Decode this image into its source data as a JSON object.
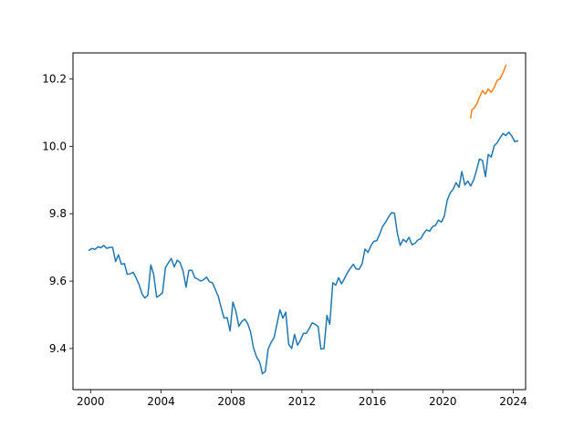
{
  "chart_data": {
    "type": "line",
    "title": "",
    "xlabel": "",
    "ylabel": "",
    "xlim": [
      1999.0,
      2024.7
    ],
    "ylim": [
      9.278,
      10.277
    ],
    "xticks": [
      2000,
      2004,
      2008,
      2012,
      2016,
      2020,
      2024
    ],
    "xtick_labels": [
      "2000",
      "2004",
      "2008",
      "2012",
      "2016",
      "2020",
      "2024"
    ],
    "yticks": [
      9.4,
      9.6,
      9.8,
      10.0,
      10.2
    ],
    "ytick_labels": [
      "9.4",
      "9.6",
      "9.8",
      "10.0",
      "10.2"
    ],
    "grid": false,
    "legend": "none",
    "series": [
      {
        "color": "#1f77b4",
        "points": [
          [
            1999.92,
            9.692
          ],
          [
            2000.08,
            9.697
          ],
          [
            2000.25,
            9.694
          ],
          [
            2000.42,
            9.702
          ],
          [
            2000.58,
            9.699
          ],
          [
            2000.75,
            9.706
          ],
          [
            2000.92,
            9.697
          ],
          [
            2001.08,
            9.7
          ],
          [
            2001.25,
            9.7
          ],
          [
            2001.42,
            9.658
          ],
          [
            2001.58,
            9.678
          ],
          [
            2001.75,
            9.65
          ],
          [
            2001.92,
            9.652
          ],
          [
            2002.08,
            9.62
          ],
          [
            2002.25,
            9.622
          ],
          [
            2002.42,
            9.626
          ],
          [
            2002.58,
            9.61
          ],
          [
            2002.75,
            9.59
          ],
          [
            2002.92,
            9.562
          ],
          [
            2003.08,
            9.55
          ],
          [
            2003.25,
            9.558
          ],
          [
            2003.42,
            9.648
          ],
          [
            2003.58,
            9.62
          ],
          [
            2003.75,
            9.552
          ],
          [
            2003.92,
            9.558
          ],
          [
            2004.08,
            9.565
          ],
          [
            2004.25,
            9.64
          ],
          [
            2004.42,
            9.655
          ],
          [
            2004.58,
            9.667
          ],
          [
            2004.75,
            9.642
          ],
          [
            2004.92,
            9.662
          ],
          [
            2005.08,
            9.655
          ],
          [
            2005.25,
            9.63
          ],
          [
            2005.42,
            9.582
          ],
          [
            2005.58,
            9.632
          ],
          [
            2005.75,
            9.632
          ],
          [
            2005.92,
            9.61
          ],
          [
            2006.08,
            9.606
          ],
          [
            2006.25,
            9.6
          ],
          [
            2006.42,
            9.604
          ],
          [
            2006.58,
            9.612
          ],
          [
            2006.75,
            9.598
          ],
          [
            2006.92,
            9.595
          ],
          [
            2007.08,
            9.575
          ],
          [
            2007.25,
            9.555
          ],
          [
            2007.42,
            9.52
          ],
          [
            2007.58,
            9.49
          ],
          [
            2007.75,
            9.492
          ],
          [
            2007.92,
            9.452
          ],
          [
            2008.08,
            9.538
          ],
          [
            2008.25,
            9.51
          ],
          [
            2008.42,
            9.466
          ],
          [
            2008.58,
            9.48
          ],
          [
            2008.75,
            9.487
          ],
          [
            2008.92,
            9.474
          ],
          [
            2009.08,
            9.45
          ],
          [
            2009.25,
            9.402
          ],
          [
            2009.42,
            9.375
          ],
          [
            2009.58,
            9.362
          ],
          [
            2009.67,
            9.346
          ],
          [
            2009.75,
            9.325
          ],
          [
            2009.92,
            9.332
          ],
          [
            2010.08,
            9.398
          ],
          [
            2010.25,
            9.418
          ],
          [
            2010.42,
            9.433
          ],
          [
            2010.58,
            9.472
          ],
          [
            2010.75,
            9.515
          ],
          [
            2010.92,
            9.49
          ],
          [
            2011.08,
            9.508
          ],
          [
            2011.25,
            9.412
          ],
          [
            2011.42,
            9.4
          ],
          [
            2011.58,
            9.442
          ],
          [
            2011.75,
            9.41
          ],
          [
            2011.92,
            9.425
          ],
          [
            2012.08,
            9.445
          ],
          [
            2012.25,
            9.445
          ],
          [
            2012.42,
            9.46
          ],
          [
            2012.58,
            9.476
          ],
          [
            2012.75,
            9.472
          ],
          [
            2012.92,
            9.465
          ],
          [
            2013.08,
            9.398
          ],
          [
            2013.25,
            9.4
          ],
          [
            2013.42,
            9.498
          ],
          [
            2013.58,
            9.472
          ],
          [
            2013.75,
            9.595
          ],
          [
            2013.92,
            9.588
          ],
          [
            2014.08,
            9.61
          ],
          [
            2014.25,
            9.592
          ],
          [
            2014.42,
            9.608
          ],
          [
            2014.58,
            9.625
          ],
          [
            2014.75,
            9.638
          ],
          [
            2014.92,
            9.65
          ],
          [
            2015.08,
            9.636
          ],
          [
            2015.25,
            9.635
          ],
          [
            2015.42,
            9.652
          ],
          [
            2015.58,
            9.695
          ],
          [
            2015.75,
            9.685
          ],
          [
            2015.92,
            9.705
          ],
          [
            2016.08,
            9.718
          ],
          [
            2016.25,
            9.72
          ],
          [
            2016.42,
            9.74
          ],
          [
            2016.58,
            9.762
          ],
          [
            2016.75,
            9.775
          ],
          [
            2016.92,
            9.79
          ],
          [
            2017.08,
            9.803
          ],
          [
            2017.25,
            9.802
          ],
          [
            2017.42,
            9.742
          ],
          [
            2017.58,
            9.706
          ],
          [
            2017.75,
            9.724
          ],
          [
            2017.92,
            9.716
          ],
          [
            2018.08,
            9.73
          ],
          [
            2018.25,
            9.708
          ],
          [
            2018.42,
            9.712
          ],
          [
            2018.58,
            9.722
          ],
          [
            2018.75,
            9.726
          ],
          [
            2018.92,
            9.742
          ],
          [
            2019.08,
            9.752
          ],
          [
            2019.25,
            9.748
          ],
          [
            2019.42,
            9.762
          ],
          [
            2019.58,
            9.765
          ],
          [
            2019.75,
            9.781
          ],
          [
            2019.92,
            9.775
          ],
          [
            2020.08,
            9.792
          ],
          [
            2020.25,
            9.84
          ],
          [
            2020.42,
            9.862
          ],
          [
            2020.58,
            9.872
          ],
          [
            2020.75,
            9.892
          ],
          [
            2020.92,
            9.878
          ],
          [
            2021.08,
            9.925
          ],
          [
            2021.25,
            9.885
          ],
          [
            2021.42,
            9.897
          ],
          [
            2021.58,
            9.882
          ],
          [
            2021.75,
            9.9
          ],
          [
            2021.92,
            9.93
          ],
          [
            2022.08,
            9.962
          ],
          [
            2022.25,
            9.958
          ],
          [
            2022.42,
            9.91
          ],
          [
            2022.58,
            9.976
          ],
          [
            2022.75,
            9.968
          ],
          [
            2022.92,
            10.002
          ],
          [
            2023.08,
            10.01
          ],
          [
            2023.25,
            10.025
          ],
          [
            2023.42,
            10.038
          ],
          [
            2023.58,
            10.032
          ],
          [
            2023.75,
            10.042
          ],
          [
            2023.92,
            10.03
          ],
          [
            2024.08,
            10.014
          ],
          [
            2024.25,
            10.016
          ]
        ]
      },
      {
        "color": "#ff7f0e",
        "points": [
          [
            2021.58,
            10.085
          ],
          [
            2021.65,
            10.108
          ],
          [
            2021.75,
            10.112
          ],
          [
            2021.92,
            10.125
          ],
          [
            2022.08,
            10.145
          ],
          [
            2022.25,
            10.165
          ],
          [
            2022.42,
            10.155
          ],
          [
            2022.58,
            10.17
          ],
          [
            2022.75,
            10.16
          ],
          [
            2022.92,
            10.175
          ],
          [
            2023.08,
            10.195
          ],
          [
            2023.25,
            10.2
          ],
          [
            2023.42,
            10.218
          ],
          [
            2023.58,
            10.24
          ]
        ]
      }
    ]
  }
}
